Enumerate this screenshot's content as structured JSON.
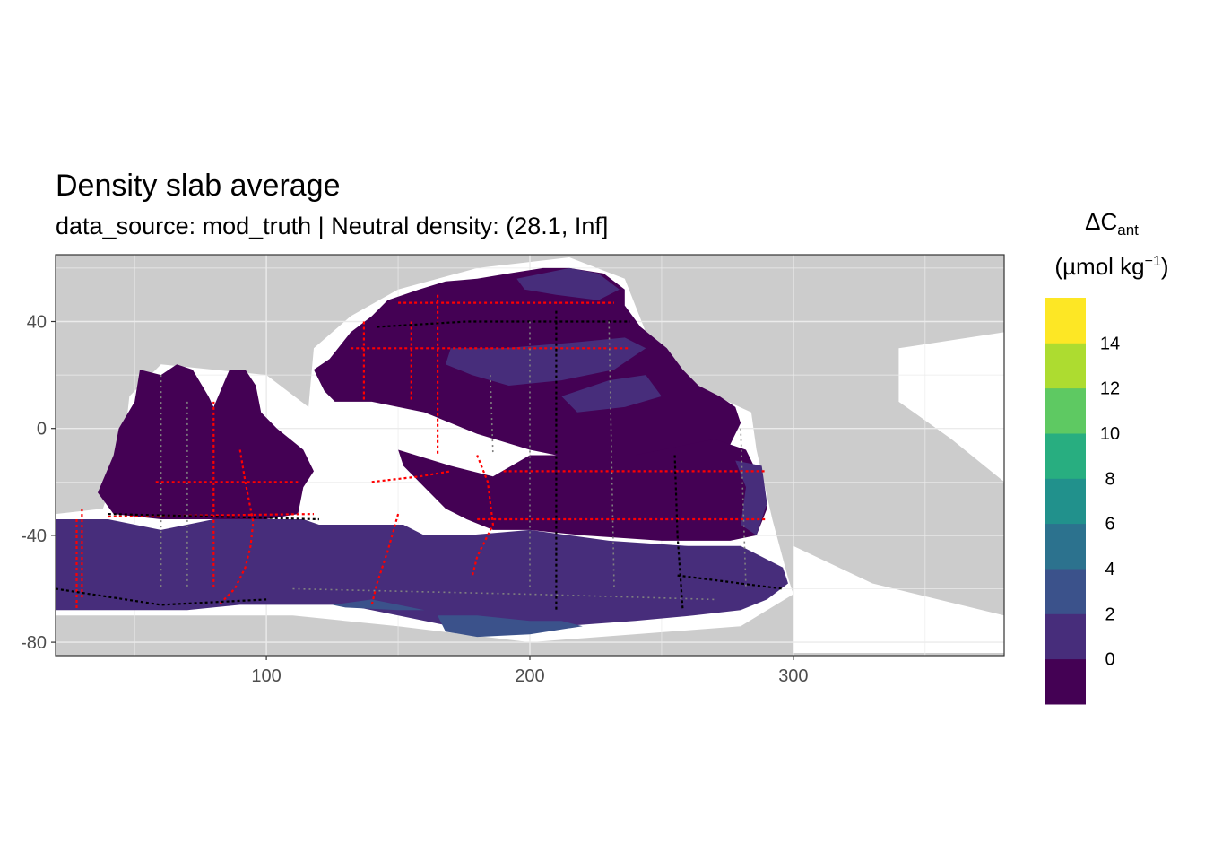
{
  "chart_data": {
    "type": "heatmap",
    "title": "Density slab average",
    "subtitle": "data_source: mod_truth | Neutral density: (28.1, Inf]",
    "xlabel": "",
    "ylabel": "",
    "x_ticks": [
      100,
      200,
      300
    ],
    "y_ticks": [
      40,
      0,
      -40,
      -80
    ],
    "xlim": [
      20,
      380
    ],
    "ylim": [
      -85,
      65
    ],
    "grid": true,
    "legend": {
      "title_main": "ΔC",
      "title_sub": "ant",
      "units_pre": "(µmol kg",
      "units_sup": "−1",
      "units_post": ")",
      "placement": "right",
      "breaks": [
        "0",
        "2",
        "4",
        "6",
        "8",
        "10",
        "12",
        "14"
      ],
      "colors": [
        "#440154",
        "#472d7b",
        "#3b528b",
        "#2c728e",
        "#21918c",
        "#28ae80",
        "#5ec962",
        "#addc30",
        "#fde725"
      ]
    },
    "colors": {
      "land": "#cccccc",
      "ocean_missing": "#ffffff",
      "grid": "#ebebeb",
      "panel_border": "#333333",
      "obs_red": "#ff0000",
      "obs_black": "#000000",
      "obs_grey": "#808080"
    },
    "regions": [
      {
        "name": "indian",
        "bin": 0,
        "lon_lat": [
          [
            52,
            22
          ],
          [
            60,
            20
          ],
          [
            66,
            24
          ],
          [
            72,
            22
          ],
          [
            78,
            12
          ],
          [
            80,
            8
          ],
          [
            86,
            22
          ],
          [
            92,
            22
          ],
          [
            96,
            16
          ],
          [
            98,
            6
          ],
          [
            104,
            0
          ],
          [
            114,
            -8
          ],
          [
            118,
            -16
          ],
          [
            114,
            -22
          ],
          [
            112,
            -32
          ],
          [
            100,
            -34
          ],
          [
            80,
            -34
          ],
          [
            60,
            -34
          ],
          [
            42,
            -32
          ],
          [
            36,
            -24
          ],
          [
            42,
            -10
          ],
          [
            44,
            0
          ],
          [
            50,
            10
          ]
        ]
      },
      {
        "name": "north-pacific",
        "bin": 0,
        "lon_lat": [
          [
            118,
            22
          ],
          [
            124,
            26
          ],
          [
            132,
            36
          ],
          [
            140,
            42
          ],
          [
            146,
            48
          ],
          [
            158,
            52
          ],
          [
            168,
            55
          ],
          [
            180,
            56
          ],
          [
            192,
            58
          ],
          [
            205,
            60
          ],
          [
            215,
            60
          ],
          [
            228,
            58
          ],
          [
            236,
            52
          ],
          [
            236,
            46
          ],
          [
            242,
            38
          ],
          [
            252,
            30
          ],
          [
            258,
            22
          ],
          [
            264,
            16
          ],
          [
            272,
            12
          ],
          [
            278,
            8
          ],
          [
            280,
            2
          ],
          [
            276,
            -6
          ],
          [
            262,
            -10
          ],
          [
            248,
            -10
          ],
          [
            220,
            -12
          ],
          [
            200,
            -8
          ],
          [
            180,
            -2
          ],
          [
            160,
            6
          ],
          [
            140,
            10
          ],
          [
            126,
            10
          ],
          [
            122,
            14
          ]
        ]
      },
      {
        "name": "south-pacific",
        "bin": 0,
        "lon_lat": [
          [
            150,
            -8
          ],
          [
            170,
            -14
          ],
          [
            186,
            -18
          ],
          [
            200,
            -10
          ],
          [
            240,
            -10
          ],
          [
            270,
            -4
          ],
          [
            282,
            -8
          ],
          [
            288,
            -20
          ],
          [
            290,
            -30
          ],
          [
            286,
            -40
          ],
          [
            276,
            -42
          ],
          [
            250,
            -42
          ],
          [
            220,
            -40
          ],
          [
            200,
            -38
          ],
          [
            186,
            -38
          ],
          [
            176,
            -34
          ],
          [
            168,
            -30
          ],
          [
            160,
            -22
          ],
          [
            152,
            -14
          ]
        ]
      },
      {
        "name": "north-pacific-mid",
        "bin": 1,
        "lon_lat": [
          [
            170,
            30
          ],
          [
            190,
            30
          ],
          [
            215,
            32
          ],
          [
            236,
            34
          ],
          [
            244,
            30
          ],
          [
            232,
            22
          ],
          [
            212,
            18
          ],
          [
            192,
            16
          ],
          [
            178,
            20
          ],
          [
            168,
            24
          ]
        ]
      },
      {
        "name": "north-pacific-high",
        "bin": 1,
        "lon_lat": [
          [
            195,
            56
          ],
          [
            215,
            60
          ],
          [
            226,
            58
          ],
          [
            234,
            52
          ],
          [
            226,
            48
          ],
          [
            210,
            50
          ],
          [
            198,
            52
          ]
        ]
      },
      {
        "name": "east-pacific-band",
        "bin": 1,
        "lon_lat": [
          [
            212,
            12
          ],
          [
            230,
            18
          ],
          [
            244,
            20
          ],
          [
            250,
            12
          ],
          [
            236,
            8
          ],
          [
            218,
            6
          ]
        ]
      },
      {
        "name": "chile-margin",
        "bin": 1,
        "lon_lat": [
          [
            278,
            -12
          ],
          [
            288,
            -14
          ],
          [
            290,
            -28
          ],
          [
            286,
            -40
          ],
          [
            280,
            -36
          ],
          [
            282,
            -22
          ]
        ]
      },
      {
        "name": "southern-ocean",
        "bin": 1,
        "lon_lat": [
          [
            20,
            -34
          ],
          [
            40,
            -34
          ],
          [
            60,
            -38
          ],
          [
            80,
            -34
          ],
          [
            100,
            -34
          ],
          [
            114,
            -34
          ],
          [
            120,
            -36
          ],
          [
            140,
            -36
          ],
          [
            152,
            -36
          ],
          [
            160,
            -40
          ],
          [
            176,
            -40
          ],
          [
            200,
            -38
          ],
          [
            230,
            -42
          ],
          [
            260,
            -44
          ],
          [
            280,
            -44
          ],
          [
            296,
            -52
          ],
          [
            298,
            -58
          ],
          [
            290,
            -64
          ],
          [
            280,
            -68
          ],
          [
            262,
            -70
          ],
          [
            240,
            -72
          ],
          [
            212,
            -74
          ],
          [
            190,
            -75
          ],
          [
            170,
            -74
          ],
          [
            150,
            -70
          ],
          [
            130,
            -66
          ],
          [
            110,
            -66
          ],
          [
            90,
            -66
          ],
          [
            70,
            -68
          ],
          [
            50,
            -68
          ],
          [
            30,
            -68
          ],
          [
            20,
            -68
          ]
        ]
      },
      {
        "name": "ross-sea",
        "bin": 2,
        "lon_lat": [
          [
            165,
            -70
          ],
          [
            180,
            -70
          ],
          [
            200,
            -72
          ],
          [
            212,
            -72
          ],
          [
            220,
            -74
          ],
          [
            200,
            -77
          ],
          [
            180,
            -78
          ],
          [
            168,
            -76
          ]
        ]
      },
      {
        "name": "adelie",
        "bin": 2,
        "lon_lat": [
          [
            125,
            -66
          ],
          [
            140,
            -64
          ],
          [
            160,
            -68
          ],
          [
            150,
            -68
          ],
          [
            130,
            -67
          ]
        ]
      }
    ],
    "observation_lines": [
      {
        "color": "red",
        "points": [
          [
            28,
            -34
          ],
          [
            28,
            -68
          ]
        ]
      },
      {
        "color": "red",
        "points": [
          [
            30,
            -30
          ],
          [
            30,
            -64
          ]
        ]
      },
      {
        "color": "red",
        "points": [
          [
            90,
            -8
          ],
          [
            92,
            -20
          ],
          [
            95,
            -35
          ],
          [
            94,
            -44
          ],
          [
            92,
            -52
          ],
          [
            88,
            -60
          ],
          [
            82,
            -66
          ]
        ]
      },
      {
        "color": "red",
        "points": [
          [
            150,
            -32
          ],
          [
            146,
            -46
          ],
          [
            142,
            -58
          ],
          [
            140,
            -66
          ]
        ]
      },
      {
        "color": "red",
        "points": [
          [
            180,
            -10
          ],
          [
            184,
            -20
          ],
          [
            186,
            -36
          ],
          [
            180,
            -48
          ],
          [
            178,
            -56
          ]
        ]
      },
      {
        "color": "red",
        "points": [
          [
            140,
            -20
          ],
          [
            158,
            -18
          ],
          [
            170,
            -16
          ]
        ]
      },
      {
        "color": "red",
        "points": [
          [
            180,
            -34
          ],
          [
            290,
            -34
          ]
        ]
      },
      {
        "color": "red",
        "points": [
          [
            190,
            -16
          ],
          [
            290,
            -16
          ]
        ]
      },
      {
        "color": "red",
        "points": [
          [
            132,
            30
          ],
          [
            238,
            30
          ]
        ]
      },
      {
        "color": "red",
        "points": [
          [
            150,
            47
          ],
          [
            232,
            47
          ]
        ]
      },
      {
        "color": "red",
        "points": [
          [
            155,
            40
          ],
          [
            155,
            10
          ]
        ]
      },
      {
        "color": "red",
        "points": [
          [
            137,
            40
          ],
          [
            137,
            10
          ]
        ]
      },
      {
        "color": "red",
        "points": [
          [
            165,
            50
          ],
          [
            165,
            -10
          ]
        ]
      },
      {
        "color": "red",
        "points": [
          [
            58,
            -20
          ],
          [
            112,
            -20
          ]
        ]
      },
      {
        "color": "red",
        "points": [
          [
            40,
            -33
          ],
          [
            118,
            -32
          ]
        ]
      },
      {
        "color": "red",
        "points": [
          [
            80,
            10
          ],
          [
            80,
            -60
          ]
        ]
      },
      {
        "color": "black",
        "points": [
          [
            210,
            44
          ],
          [
            210,
            -68
          ]
        ]
      },
      {
        "color": "black",
        "points": [
          [
            255,
            -10
          ],
          [
            256,
            -40
          ],
          [
            258,
            -68
          ]
        ]
      },
      {
        "color": "black",
        "points": [
          [
            142,
            38
          ],
          [
            176,
            40
          ],
          [
            238,
            40
          ]
        ]
      },
      {
        "color": "black",
        "points": [
          [
            40,
            -32
          ],
          [
            120,
            -34
          ]
        ]
      },
      {
        "color": "black",
        "points": [
          [
            256,
            -55
          ],
          [
            296,
            -60
          ]
        ]
      },
      {
        "color": "black",
        "points": [
          [
            20,
            -60
          ],
          [
            60,
            -66
          ],
          [
            100,
            -64
          ]
        ]
      },
      {
        "color": "grey",
        "points": [
          [
            60,
            20
          ],
          [
            60,
            -60
          ]
        ]
      },
      {
        "color": "grey",
        "points": [
          [
            70,
            10
          ],
          [
            70,
            -60
          ]
        ]
      },
      {
        "color": "grey",
        "points": [
          [
            200,
            40
          ],
          [
            200,
            -60
          ]
        ]
      },
      {
        "color": "grey",
        "points": [
          [
            230,
            40
          ],
          [
            232,
            -60
          ]
        ]
      },
      {
        "color": "grey",
        "points": [
          [
            280,
            0
          ],
          [
            282,
            -60
          ]
        ]
      },
      {
        "color": "grey",
        "points": [
          [
            110,
            -60
          ],
          [
            200,
            -62
          ],
          [
            270,
            -64
          ]
        ]
      },
      {
        "color": "grey",
        "points": [
          [
            185,
            20
          ],
          [
            186,
            -10
          ]
        ]
      }
    ]
  }
}
